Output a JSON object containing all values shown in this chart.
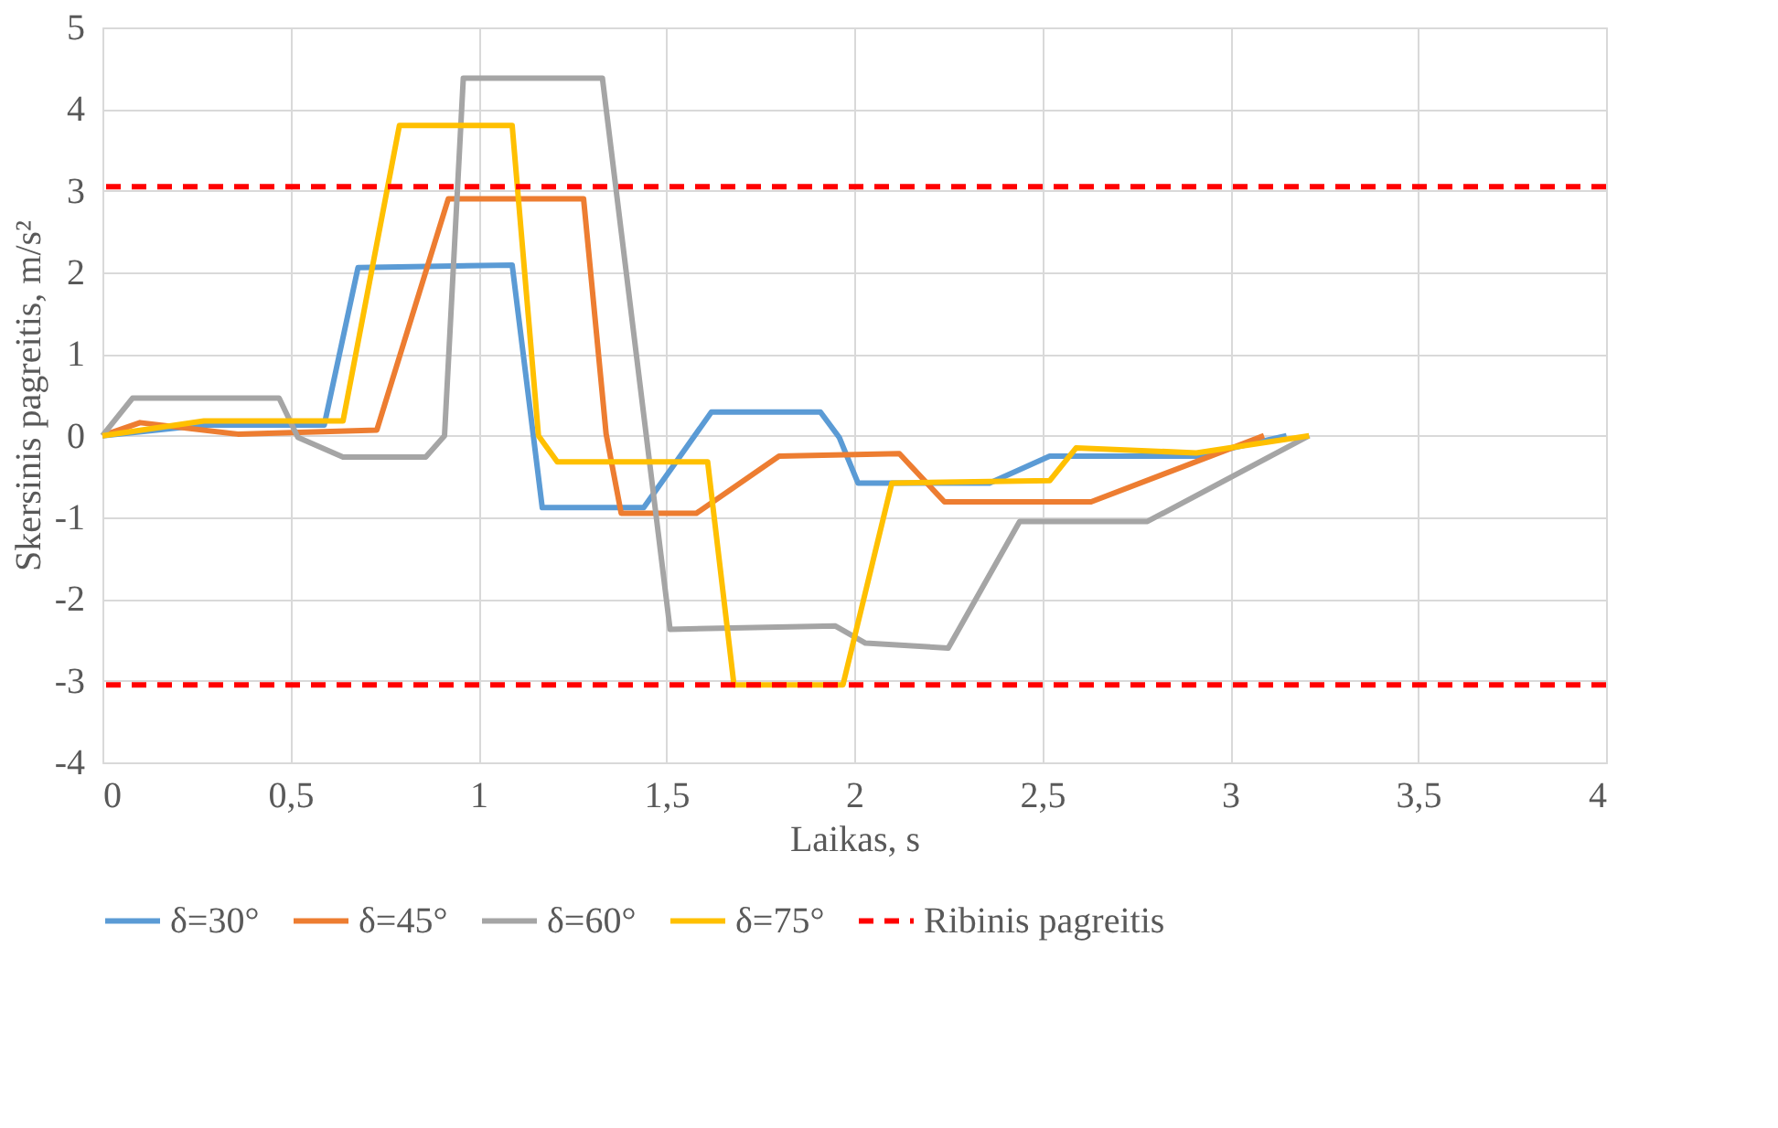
{
  "chart_data": {
    "type": "line",
    "xlabel": "Laikas, s",
    "ylabel": "Skersinis pagreitis, m/s²",
    "xlim": [
      0,
      4
    ],
    "xticks": [
      0,
      {
        "value": 0.5,
        "label": "0,5"
      },
      1,
      {
        "value": 1.5,
        "label": "1,5"
      },
      2,
      {
        "value": 2.5,
        "label": "2,5"
      },
      3,
      {
        "value": 3.5,
        "label": "3,5"
      },
      4
    ],
    "ylim": [
      -4,
      5
    ],
    "yticks": [
      -4,
      -3,
      -2,
      -1,
      0,
      1,
      2,
      3,
      4,
      5
    ],
    "grid": true,
    "legend": "bottom",
    "line_style": "solid",
    "marker": "none",
    "series": [
      {
        "name": "δ=30°",
        "color": "#5b9bd5",
        "x": [
          0,
          0.27,
          0.59,
          0.68,
          1.09,
          1.17,
          1.44,
          1.62,
          1.91,
          1.96,
          2.01,
          2.36,
          2.52,
          2.91,
          3.15
        ],
        "values": [
          0,
          0.13,
          0.13,
          2.06,
          2.09,
          -0.88,
          -0.88,
          0.29,
          0.29,
          -0.02,
          -0.58,
          -0.58,
          -0.25,
          -0.25,
          0
        ]
      },
      {
        "name": "δ=45°",
        "color": "#ed7d31",
        "x": [
          0,
          0.1,
          0.36,
          0.73,
          0.92,
          1.28,
          1.34,
          1.38,
          1.58,
          1.8,
          2.12,
          2.24,
          2.63,
          3.09
        ],
        "values": [
          0,
          0.16,
          0.02,
          0.07,
          2.9,
          2.9,
          0.02,
          -0.95,
          -0.95,
          -0.25,
          -0.22,
          -0.81,
          -0.81,
          0
        ]
      },
      {
        "name": "δ=60°",
        "color": "#a5a5a5",
        "x": [
          0,
          0.08,
          0.47,
          0.52,
          0.64,
          0.86,
          0.91,
          0.96,
          1.33,
          1.51,
          1.95,
          2.03,
          2.25,
          2.44,
          2.78,
          3.21
        ],
        "values": [
          0,
          0.46,
          0.46,
          -0.02,
          -0.26,
          -0.26,
          0,
          4.38,
          4.38,
          -2.37,
          -2.33,
          -2.54,
          -2.6,
          -1.05,
          -1.05,
          0
        ]
      },
      {
        "name": "δ=75°",
        "color": "#ffc000",
        "x": [
          0,
          0.27,
          0.64,
          0.79,
          1.09,
          1.16,
          1.21,
          1.61,
          1.68,
          1.97,
          2.1,
          2.52,
          2.59,
          2.91,
          3.21
        ],
        "values": [
          0,
          0.18,
          0.18,
          3.8,
          3.8,
          0,
          -0.32,
          -0.32,
          -3.05,
          -3.05,
          -0.58,
          -0.55,
          -0.15,
          -0.21,
          0
        ]
      }
    ],
    "ref_lines": [
      {
        "axis": "y",
        "value": 3.05,
        "label": "Ribinis pagreitis",
        "color": "#ff0000",
        "line_style": "dashed"
      },
      {
        "axis": "y",
        "value": -3.05,
        "color": "#ff0000",
        "line_style": "dashed"
      }
    ]
  }
}
